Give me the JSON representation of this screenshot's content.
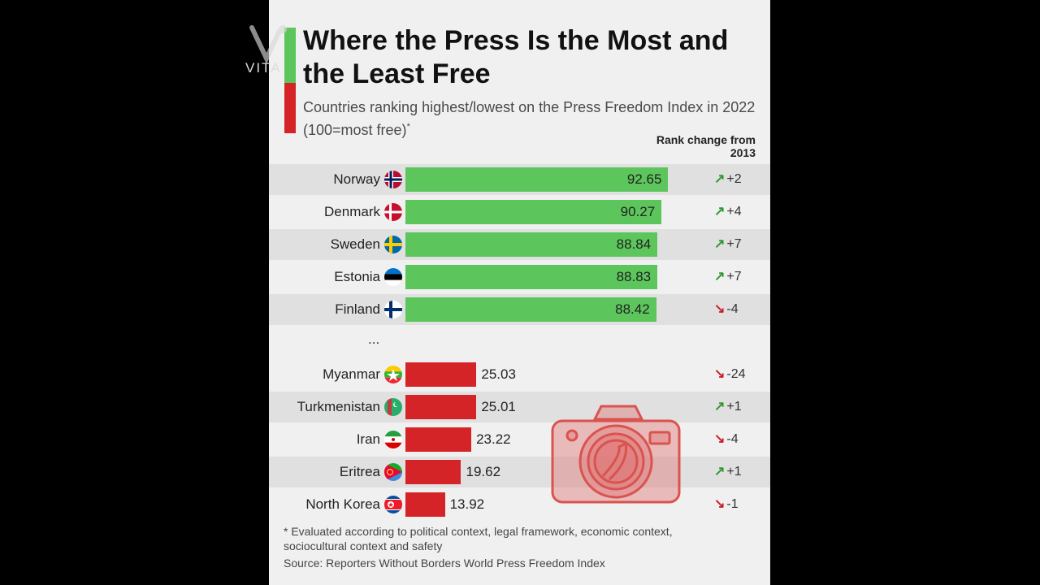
{
  "title": "Where the Press Is the Most and the Least Free",
  "subtitle": "Countries ranking highest/lowest on the Press Freedom Index in 2022 (100=most free)",
  "subtitle_mark": "*",
  "rank_change_header": "Rank change from 2013",
  "ellipsis": "...",
  "footnote": "* Evaluated according to political context, legal framework, economic context, sociocultural context and safety",
  "source": "Source: Reporters Without Borders World Press Freedom Index",
  "watermark_text": "VITA",
  "colors": {
    "top": "#5cc65c",
    "bottom": "#d52428",
    "up": "#2e9a2e",
    "down": "#c91f24"
  },
  "chart_data": {
    "type": "bar",
    "orientation": "horizontal",
    "title": "Where the Press Is the Most and the Least Free",
    "subtitle": "Countries ranking highest/lowest on the Press Freedom Index in 2022 (100=most free)*",
    "xlim": [
      0,
      100
    ],
    "grid": false,
    "rows": [
      {
        "country": "Norway",
        "score": 92.65,
        "score_label": "92.65",
        "group": "top",
        "change": "+2",
        "direction": "up",
        "flag": "norway-flag-icon"
      },
      {
        "country": "Denmark",
        "score": 90.27,
        "score_label": "90.27",
        "group": "top",
        "change": "+4",
        "direction": "up",
        "flag": "denmark-flag-icon"
      },
      {
        "country": "Sweden",
        "score": 88.84,
        "score_label": "88.84",
        "group": "top",
        "change": "+7",
        "direction": "up",
        "flag": "sweden-flag-icon"
      },
      {
        "country": "Estonia",
        "score": 88.83,
        "score_label": "88.83",
        "group": "top",
        "change": "+7",
        "direction": "up",
        "flag": "estonia-flag-icon"
      },
      {
        "country": "Finland",
        "score": 88.42,
        "score_label": "88.42",
        "group": "top",
        "change": "-4",
        "direction": "down",
        "flag": "finland-flag-icon"
      },
      {
        "country": "Myanmar",
        "score": 25.03,
        "score_label": "25.03",
        "group": "bottom",
        "change": "-24",
        "direction": "down",
        "flag": "myanmar-flag-icon"
      },
      {
        "country": "Turkmenistan",
        "score": 25.01,
        "score_label": "25.01",
        "group": "bottom",
        "change": "+1",
        "direction": "up",
        "flag": "turkmenistan-flag-icon"
      },
      {
        "country": "Iran",
        "score": 23.22,
        "score_label": "23.22",
        "group": "bottom",
        "change": "-4",
        "direction": "down",
        "flag": "iran-flag-icon"
      },
      {
        "country": "Eritrea",
        "score": 19.62,
        "score_label": "19.62",
        "group": "bottom",
        "change": "+1",
        "direction": "up",
        "flag": "eritrea-flag-icon"
      },
      {
        "country": "North Korea",
        "score": 13.92,
        "score_label": "13.92",
        "group": "bottom",
        "change": "-1",
        "direction": "down",
        "flag": "north-korea-flag-icon"
      }
    ]
  }
}
